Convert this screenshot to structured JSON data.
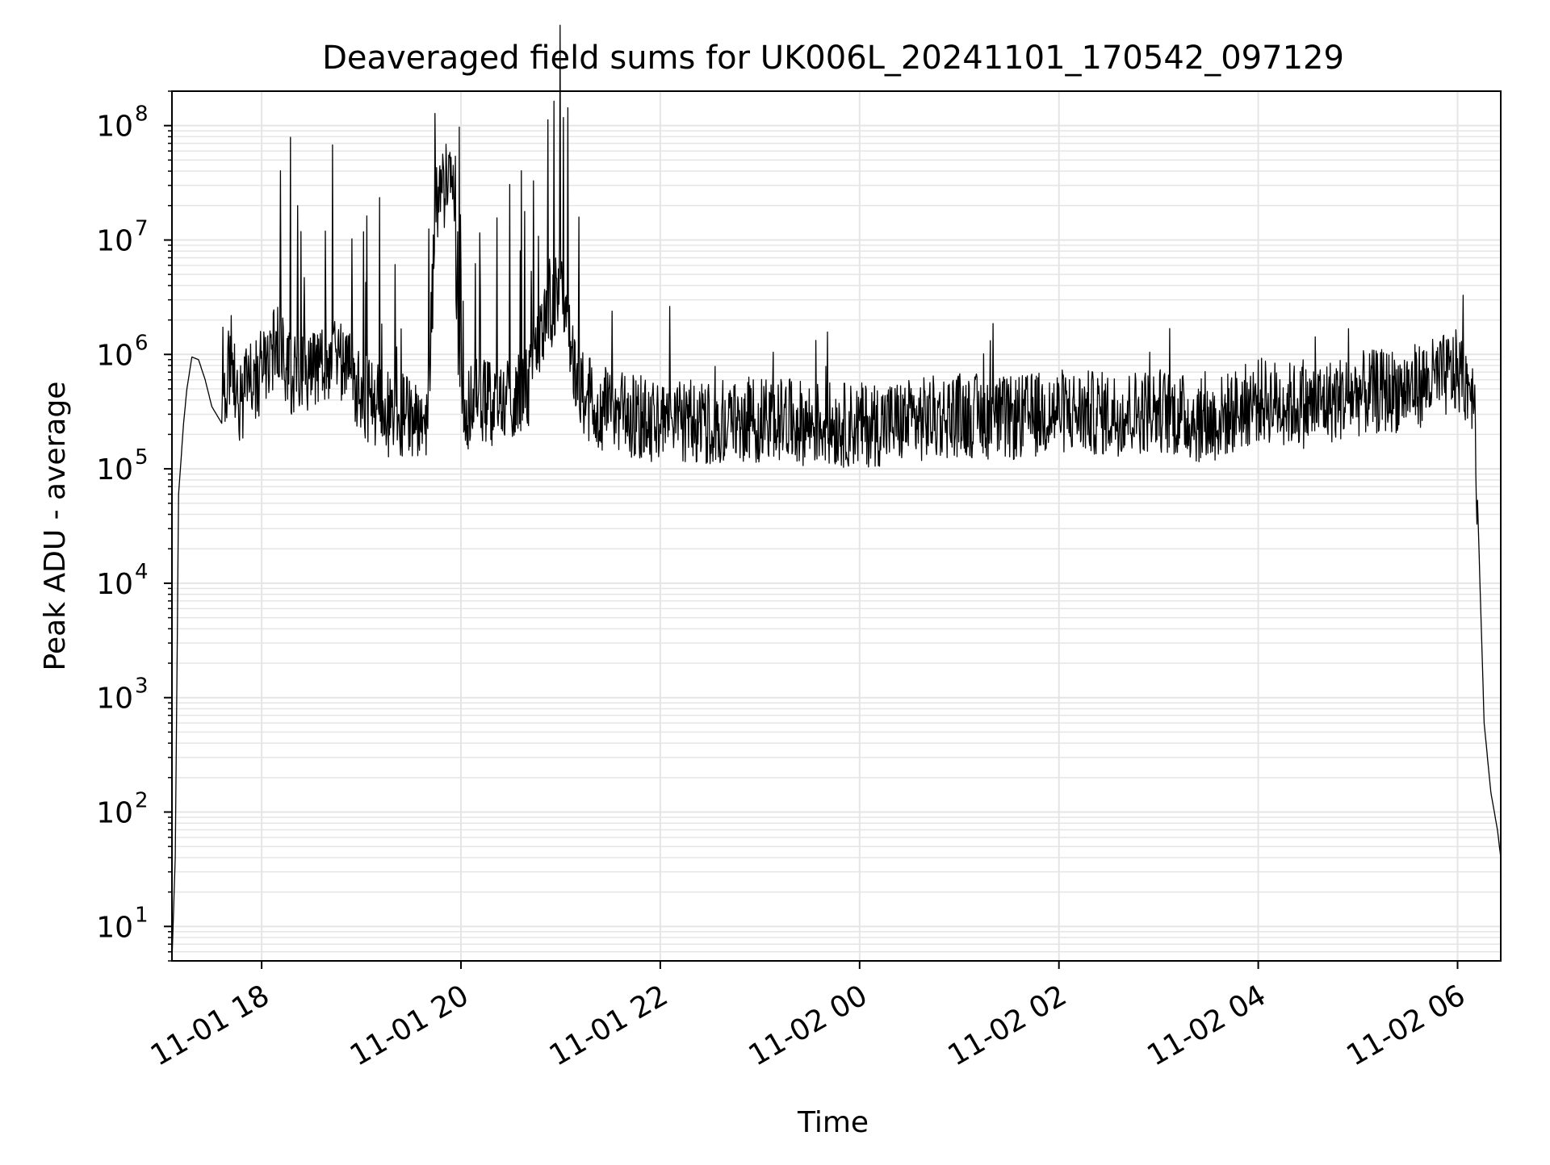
{
  "chart_data": {
    "type": "line",
    "title": "Deaveraged field sums for UK006L_20241101_170542_097129",
    "xlabel": "Time",
    "ylabel": "Peak ADU - average",
    "yscale": "log",
    "xlim": [
      "2024-11-01 17:06",
      "2024-11-02 06:26"
    ],
    "ylim": [
      5,
      200000000
    ],
    "x_tick_labels": [
      "11-01 18",
      "11-01 20",
      "11-01 22",
      "11-02 00",
      "11-02 02",
      "11-02 04",
      "11-02 06"
    ],
    "y_tick_labels": [
      "10",
      "10",
      "10",
      "10",
      "10",
      "10",
      "10",
      "10"
    ],
    "y_tick_exponents": [
      "1",
      "2",
      "3",
      "4",
      "5",
      "6",
      "7",
      "8"
    ],
    "grid": true,
    "line_color": "#000000",
    "grid_color": "#e5e5e5",
    "series": [
      {
        "x": [
          "2024-11-01 17:06",
          "2024-11-01 17:08",
          "2024-11-01 17:10",
          "2024-11-01 17:13",
          "2024-11-01 17:15",
          "2024-11-01 17:18",
          "2024-11-01 17:22",
          "2024-11-01 17:26",
          "2024-11-01 17:30",
          "2024-11-01 17:36",
          "2024-11-01 17:42",
          "2024-11-01 17:45",
          "2024-11-01 17:50",
          "2024-11-01 18:00",
          "2024-11-01 18:10",
          "2024-11-01 18:20",
          "2024-11-01 18:30",
          "2024-11-01 18:45",
          "2024-11-01 19:00",
          "2024-11-01 19:15",
          "2024-11-01 19:30",
          "2024-11-01 19:40",
          "2024-11-01 19:45",
          "2024-11-01 19:55",
          "2024-11-01 20:00",
          "2024-11-01 20:10",
          "2024-11-01 20:20",
          "2024-11-01 20:40",
          "2024-11-01 21:00",
          "2024-11-01 21:10",
          "2024-11-01 21:20",
          "2024-11-01 21:40",
          "2024-11-01 22:00",
          "2024-11-01 22:30",
          "2024-11-01 23:00",
          "2024-11-01 23:30",
          "2024-11-02 00:00",
          "2024-11-02 00:30",
          "2024-11-02 01:00",
          "2024-11-02 01:30",
          "2024-11-02 02:00",
          "2024-11-02 02:30",
          "2024-11-02 03:00",
          "2024-11-02 03:30",
          "2024-11-02 04:00",
          "2024-11-02 04:30",
          "2024-11-02 05:00",
          "2024-11-02 05:30",
          "2024-11-02 06:00",
          "2024-11-02 06:10",
          "2024-11-02 06:16",
          "2024-11-02 06:20",
          "2024-11-02 06:24",
          "2024-11-02 06:26"
        ],
        "values": [
          5,
          40,
          60000,
          250000,
          500000,
          950000,
          900000,
          600000,
          350000,
          250000,
          1200000,
          300000,
          500000,
          700000,
          1200000,
          600000,
          800000,
          1000000,
          450000,
          300000,
          280000,
          300000,
          20000000,
          40000000,
          300000,
          400000,
          350000,
          500000,
          5000000,
          600000,
          350000,
          300000,
          250000,
          260000,
          270000,
          250000,
          240000,
          260000,
          300000,
          270000,
          320000,
          300000,
          330000,
          250000,
          400000,
          350000,
          450000,
          500000,
          700000,
          500000,
          600,
          150,
          70,
          40
        ]
      }
    ]
  }
}
